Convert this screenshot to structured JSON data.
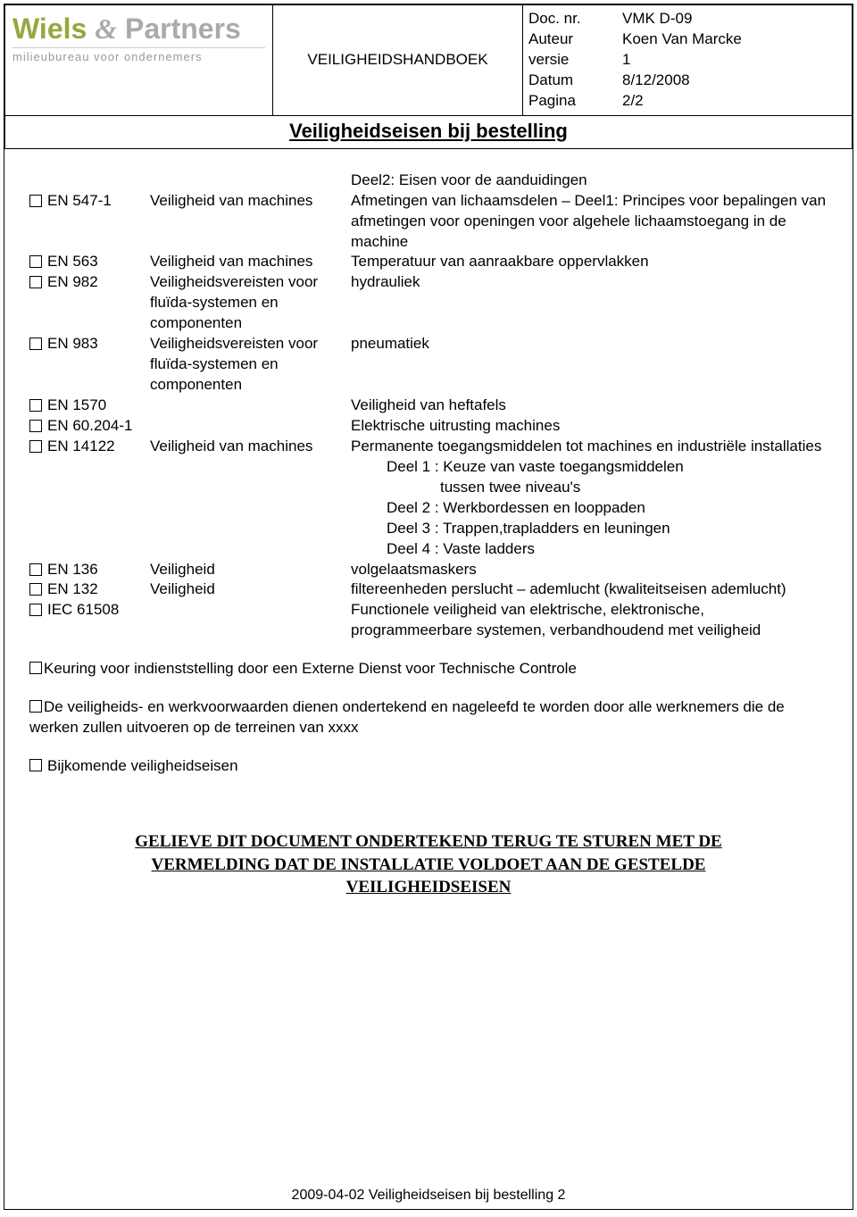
{
  "logo": {
    "name1": "Wiels",
    "amp": "&",
    "name2": "Partners",
    "subtitle": "milieubureau voor ondernemers"
  },
  "header": {
    "handbook": "VEILIGHEIDSHANDBOEK",
    "meta": {
      "docnr_label": "Doc. nr.",
      "docnr": "VMK D-09",
      "author_label": "Auteur",
      "author": "Koen Van Marcke",
      "version_label": "versie",
      "version": "1",
      "date_label": "Datum",
      "date": "8/12/2008",
      "page_label": "Pagina",
      "page": "2/2"
    },
    "title": "Veiligheidseisen bij bestelling"
  },
  "preline": "Deel2: Eisen voor de aanduidingen",
  "items": [
    {
      "code": "EN 547-1",
      "mid": "Veiligheid van machines",
      "desc": "Afmetingen van lichaamsdelen – Deel1: Principes voor bepalingen van afmetingen voor openingen voor algehele lichaamstoegang in de machine"
    },
    {
      "code": "EN 563",
      "mid": "Veiligheid van machines",
      "desc": "Temperatuur van aanraakbare oppervlakken"
    },
    {
      "code": "EN 982",
      "mid": "Veiligheidsvereisten voor fluïda-systemen en componenten",
      "desc": "hydrauliek"
    },
    {
      "code": "EN 983",
      "mid": "Veiligheidsvereisten voor fluïda-systemen en componenten",
      "desc": "pneumatiek"
    },
    {
      "code": "EN 1570",
      "mid": "",
      "desc": "Veiligheid van heftafels"
    },
    {
      "code": "EN 60.204-1",
      "mid": "",
      "desc": "Elektrische uitrusting machines"
    },
    {
      "code": "EN 14122",
      "mid": "Veiligheid van machines",
      "desc": "Permanente toegangsmiddelen tot machines en industriële installaties"
    },
    {
      "code": "EN 136",
      "mid": "Veiligheid",
      "desc": "volgelaatsmaskers"
    },
    {
      "code": "EN 132",
      "mid": "Veiligheid",
      "desc": "filtereenheden perslucht – ademlucht (kwaliteitseisen ademlucht)"
    },
    {
      "code": "IEC 61508",
      "mid": "",
      "desc": "Functionele veiligheid van elektrische, elektronische, programmeerbare systemen, verbandhoudend met veiligheid"
    }
  ],
  "sub14122": {
    "d1a": "Deel 1 : Keuze van vaste toegangsmiddelen",
    "d1b": "tussen twee niveau's",
    "d2": "Deel 2 : Werkbordessen en looppaden",
    "d3": "Deel 3 : Trappen,trapladders en leuningen",
    "d4": "Deel 4 : Vaste ladders"
  },
  "paras": {
    "p1": "Keuring voor indienststelling door een Externe Dienst voor Technische Controle",
    "p2": "De veiligheids- en werkvoorwaarden dienen ondertekend en nageleefd te worden door alle werknemers die de werken zullen uitvoeren op de terreinen van xxxx",
    "p3": "Bijkomende veiligheidseisen"
  },
  "notice": {
    "l1": "GELIEVE DIT DOCUMENT ONDERTEKEND TERUG TE STUREN MET DE",
    "l2": "VERMELDING DAT DE INSTALLATIE VOLDOET AAN DE GESTELDE",
    "l3": "VEILIGHEIDSEISEN"
  },
  "footer": "2009-04-02 Veiligheidseisen bij bestelling 2"
}
